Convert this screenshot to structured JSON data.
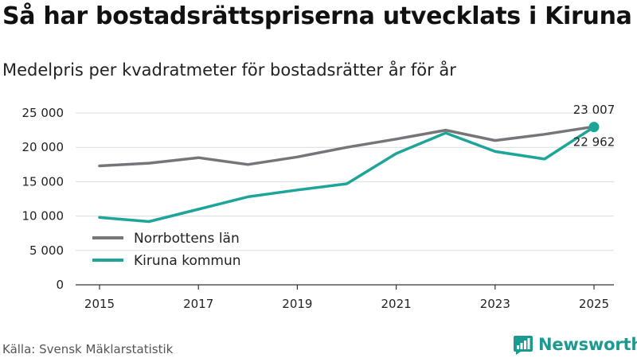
{
  "header": {
    "title": "Så har bostadsrättspriserna utvecklats i Kiruna",
    "subtitle": "Medelpris per kvadratmeter för bostadsrätter år för år"
  },
  "footer": {
    "source": "Källa: Svensk Mäklarstatistik",
    "brand": "Newsworthy"
  },
  "colors": {
    "norrbotten": "#76767a",
    "kiruna": "#1ea59a",
    "grid": "#dcdcdc",
    "axis": "#333333",
    "brand": "#1c9a91"
  },
  "chart_data": {
    "type": "line",
    "title": "Så har bostadsrättspriserna utvecklats i Kiruna",
    "subtitle": "Medelpris per kvadratmeter för bostadsrätter år för år",
    "xlabel": "",
    "ylabel": "",
    "x": [
      2015,
      2016,
      2017,
      2018,
      2019,
      2020,
      2021,
      2022,
      2023,
      2024,
      2025
    ],
    "xticks": [
      2015,
      2017,
      2019,
      2021,
      2023,
      2025
    ],
    "xtick_labels": [
      "2015",
      "2017",
      "2019",
      "2021",
      "2023",
      "2025"
    ],
    "ylim": [
      0,
      25000
    ],
    "yticks": [
      0,
      5000,
      10000,
      15000,
      20000,
      25000
    ],
    "ytick_labels": [
      "0",
      "5 000",
      "10 000",
      "15 000",
      "20 000",
      "25 000"
    ],
    "grid": true,
    "legend_position": "bottom-left",
    "series": [
      {
        "name": "Norrbottens län",
        "color": "#76767a",
        "values": [
          17300,
          17700,
          18500,
          17500,
          18600,
          20000,
          21200,
          22500,
          21000,
          21900,
          23007
        ],
        "end_label": "23 007"
      },
      {
        "name": "Kiruna kommun",
        "color": "#1ea59a",
        "values": [
          9800,
          9200,
          11000,
          12800,
          13800,
          14700,
          19100,
          22100,
          19400,
          18300,
          22962
        ],
        "end_label": "22 962"
      }
    ]
  }
}
